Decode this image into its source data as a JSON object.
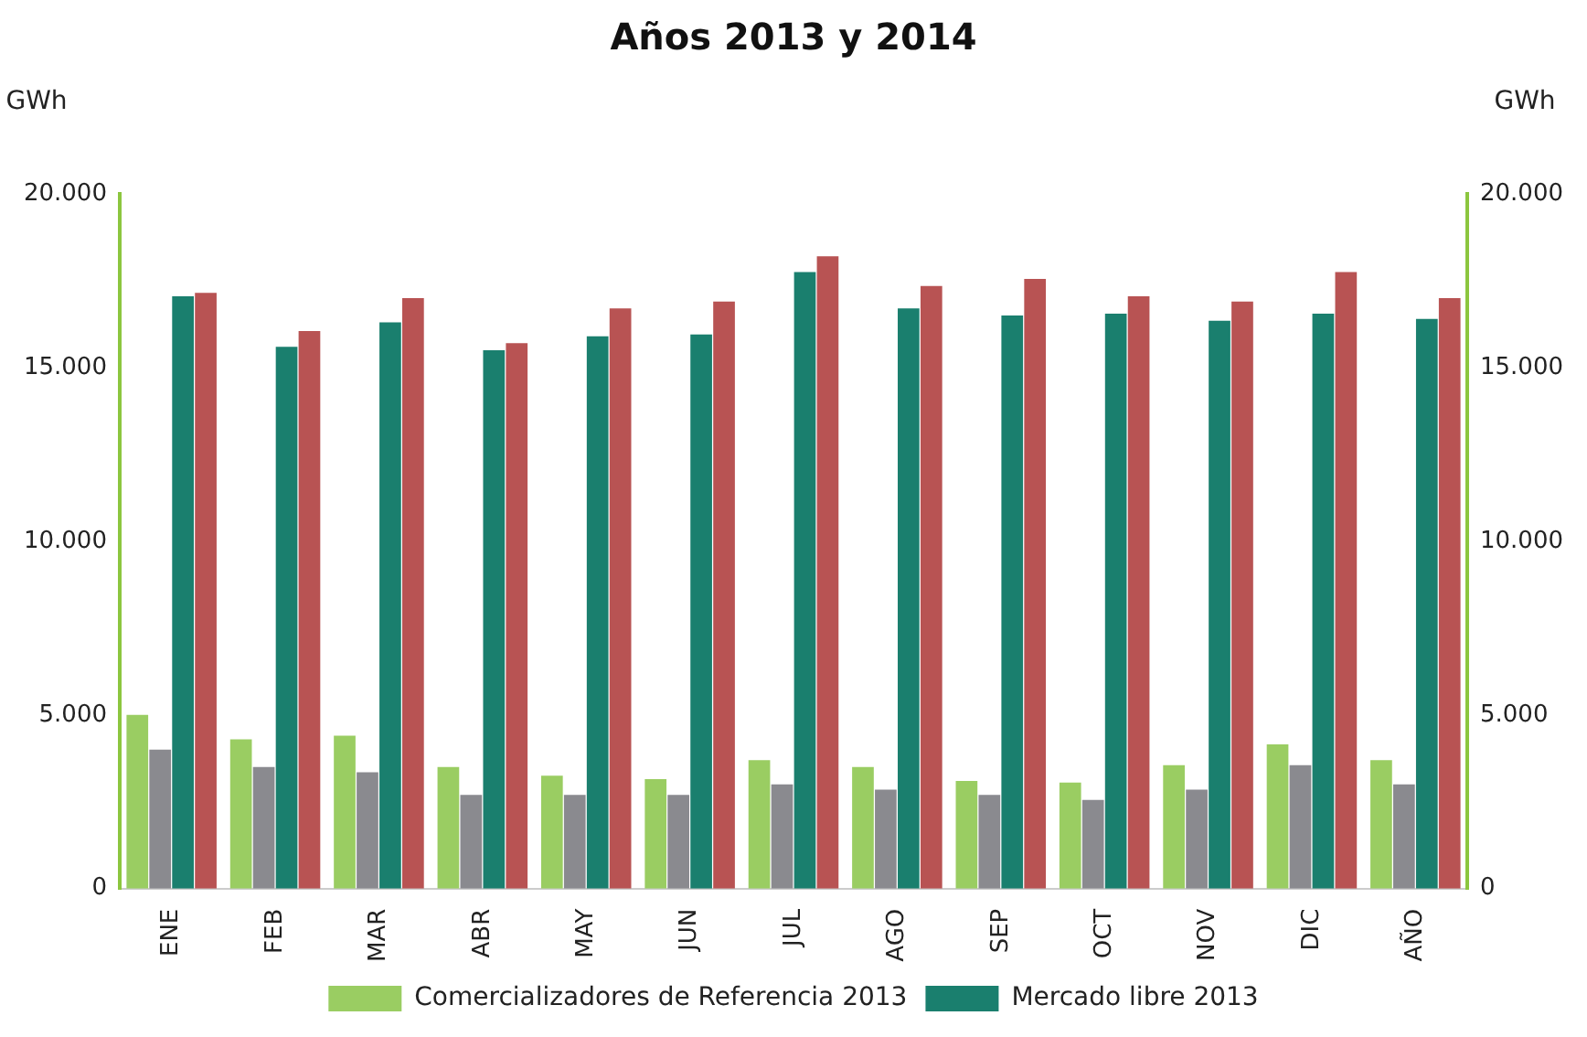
{
  "chart_data": {
    "type": "bar",
    "title": "Años 2013 y 2014",
    "ylabel": "GWh",
    "y2label": "GWh",
    "categories": [
      "ENE",
      "FEB",
      "MAR",
      "ABR",
      "MAY",
      "JUN",
      "JUL",
      "AGO",
      "SEP",
      "OCT",
      "NOV",
      "DIC",
      "AÑO"
    ],
    "series": [
      {
        "name": "Comercializadores de Referencia 2013",
        "color": "#9acd62",
        "values": [
          5000,
          4300,
          4400,
          3500,
          3250,
          3150,
          3700,
          3500,
          3100,
          3050,
          3550,
          4150,
          3700
        ]
      },
      {
        "color": "#8a8a8f",
        "values": [
          4000,
          3500,
          3350,
          2700,
          2700,
          2700,
          3000,
          2850,
          2700,
          2550,
          2850,
          3550,
          3000
        ]
      },
      {
        "name": "Mercado libre 2013",
        "color": "#1a7f6e",
        "values": [
          17050,
          15600,
          16300,
          15500,
          15900,
          15950,
          17750,
          16700,
          16500,
          16550,
          16350,
          16550,
          16400
        ]
      },
      {
        "color": "#b85353",
        "values": [
          17150,
          16050,
          17000,
          15700,
          16700,
          16900,
          18200,
          17350,
          17550,
          17050,
          16900,
          17750,
          17000
        ]
      }
    ],
    "ylim": [
      0,
      20000
    ],
    "yticks": [
      {
        "value": 0,
        "label": "0"
      },
      {
        "value": 5000,
        "label": "5.000"
      },
      {
        "value": 10000,
        "label": "10.000"
      },
      {
        "value": 15000,
        "label": "15.000"
      },
      {
        "value": 20000,
        "label": "20.000"
      }
    ],
    "y2lim": [
      0,
      20000
    ],
    "y2ticks": [
      {
        "value": 0,
        "label": "0"
      },
      {
        "value": 5000,
        "label": "5.000"
      },
      {
        "value": 10000,
        "label": "10.000"
      },
      {
        "value": 15000,
        "label": "15.000"
      },
      {
        "value": 20000,
        "label": "20.000"
      }
    ],
    "grid": false,
    "legend": "bottom"
  }
}
